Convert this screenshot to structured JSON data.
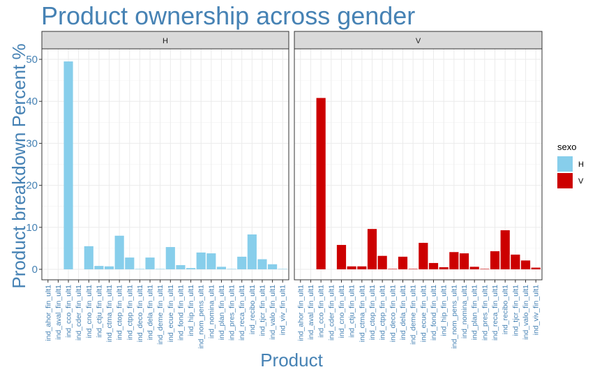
{
  "chart_data": {
    "type": "bar",
    "title": "Product ownership across gender",
    "xlabel": "Product",
    "ylabel": "Product breakdown Percent %",
    "ylim": [
      -2.5,
      52.5
    ],
    "yticks": [
      0,
      10,
      20,
      30,
      40,
      50
    ],
    "grid": true,
    "facets": [
      "H",
      "V"
    ],
    "categories": [
      "ind_ahor_fin_ult1",
      "ind_aval_fin_ult1",
      "ind_cco_fin_ult1",
      "ind_cder_fin_ult1",
      "ind_cno_fin_ult1",
      "ind_ctju_fin_ult1",
      "ind_ctma_fin_ult1",
      "ind_ctop_fin_ult1",
      "ind_ctpp_fin_ult1",
      "ind_deco_fin_ult1",
      "ind_dela_fin_ult1",
      "ind_deme_fin_ult1",
      "ind_ecue_fin_ult1",
      "ind_fond_fin_ult1",
      "ind_hip_fin_ult1",
      "ind_nom_pens_ult1",
      "ind_nomina_ult1",
      "ind_plan_fin_ult1",
      "ind_pres_fin_ult1",
      "ind_reca_fin_ult1",
      "ind_recibo_ult1",
      "ind_tjcr_fin_ult1",
      "ind_valo_fin_ult1",
      "ind_viv_fin_ult1"
    ],
    "series": [
      {
        "name": "H",
        "color": "#87ceeb",
        "values": [
          0.0,
          0.0,
          49.5,
          0.0,
          5.5,
          0.8,
          0.7,
          8.0,
          2.8,
          0.1,
          2.8,
          0.1,
          5.3,
          1.0,
          0.3,
          4.0,
          3.8,
          0.6,
          0.1,
          3.0,
          8.3,
          2.4,
          1.2,
          0.1
        ]
      },
      {
        "name": "V",
        "color": "#cc0000",
        "values": [
          0.0,
          0.0,
          40.8,
          0.0,
          5.8,
          0.7,
          0.7,
          9.6,
          3.2,
          0.1,
          3.0,
          0.1,
          6.3,
          1.5,
          0.5,
          4.1,
          3.8,
          0.6,
          0.1,
          4.3,
          9.3,
          3.5,
          2.1,
          0.4
        ]
      }
    ],
    "legend": {
      "title": "sexo",
      "placement": "right",
      "entries": [
        {
          "label": "H",
          "color": "#87ceeb"
        },
        {
          "label": "V",
          "color": "#cc0000"
        }
      ]
    }
  }
}
